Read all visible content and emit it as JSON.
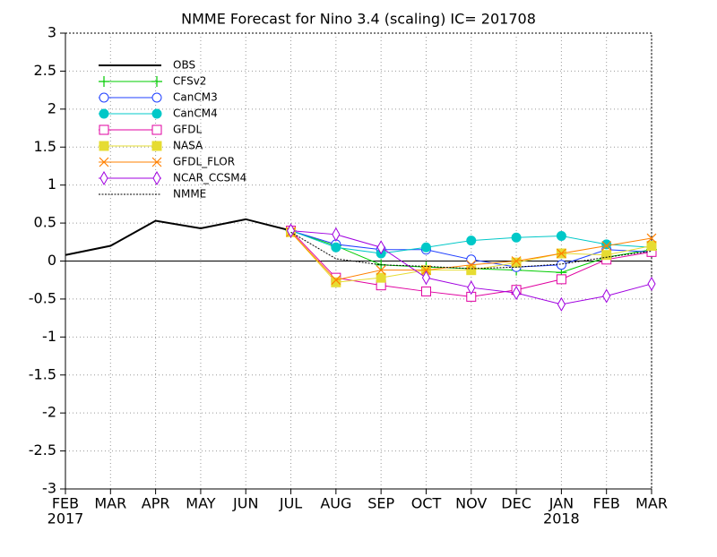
{
  "chart_data": {
    "type": "line",
    "title": "NMME Forecast for Nino 3.4 (scaling) IC= 201708",
    "categories": [
      "FEB",
      "MAR",
      "APR",
      "MAY",
      "JUN",
      "JUL",
      "AUG",
      "SEP",
      "OCT",
      "NOV",
      "DEC",
      "JAN",
      "FEB",
      "MAR"
    ],
    "category_years": [
      "2017",
      null,
      null,
      null,
      null,
      null,
      null,
      null,
      null,
      null,
      null,
      "2018",
      null,
      null
    ],
    "ylim": [
      -3,
      3
    ],
    "yticks": [
      -3,
      -2.5,
      -2,
      -1.5,
      -1,
      -0.5,
      0,
      0.5,
      1,
      1.5,
      2,
      2.5,
      3
    ],
    "grid": true,
    "legend": "upper-left",
    "series": [
      {
        "name": "OBS",
        "color": "#000000",
        "marker": "none",
        "values": [
          0.08,
          0.2,
          0.53,
          0.43,
          0.55,
          0.4,
          null,
          null,
          null,
          null,
          null,
          null,
          null,
          null
        ]
      },
      {
        "name": "CFSv2",
        "color": "#00cc00",
        "marker": "plus",
        "values": [
          null,
          null,
          null,
          null,
          null,
          0.4,
          0.2,
          -0.05,
          -0.08,
          -0.1,
          -0.12,
          -0.15,
          0.05,
          0.15
        ]
      },
      {
        "name": "CanCM3",
        "color": "#2040ff",
        "marker": "open-circle",
        "values": [
          null,
          null,
          null,
          null,
          null,
          0.4,
          0.22,
          0.15,
          0.15,
          0.02,
          -0.08,
          -0.05,
          0.15,
          0.12
        ]
      },
      {
        "name": "CanCM4",
        "color": "#00c8c8",
        "marker": "filled-circle",
        "values": [
          null,
          null,
          null,
          null,
          null,
          0.4,
          0.18,
          0.1,
          0.18,
          0.27,
          0.31,
          0.33,
          0.22,
          0.18
        ]
      },
      {
        "name": "GFDL",
        "color": "#e000a0",
        "marker": "open-square",
        "values": [
          null,
          null,
          null,
          null,
          null,
          0.4,
          -0.22,
          -0.32,
          -0.4,
          -0.47,
          -0.38,
          -0.24,
          0.02,
          0.12
        ]
      },
      {
        "name": "NASA",
        "color": "#e6dc32",
        "marker": "filled-square",
        "values": [
          null,
          null,
          null,
          null,
          null,
          0.38,
          -0.28,
          -0.22,
          -0.12,
          -0.12,
          -0.02,
          0.1,
          0.08,
          0.2
        ]
      },
      {
        "name": "GFDL_FLOR",
        "color": "#ff8000",
        "marker": "x",
        "values": [
          null,
          null,
          null,
          null,
          null,
          0.38,
          -0.25,
          -0.12,
          -0.12,
          -0.05,
          0.0,
          0.1,
          0.2,
          0.3
        ]
      },
      {
        "name": "NCAR_CCSM4",
        "color": "#a000e0",
        "marker": "diamond",
        "values": [
          null,
          null,
          null,
          null,
          null,
          0.4,
          0.35,
          0.18,
          -0.22,
          -0.35,
          -0.42,
          -0.57,
          -0.46,
          -0.3
        ]
      },
      {
        "name": "NMME",
        "color": "#000000",
        "marker": "none",
        "dash": true,
        "values": [
          null,
          null,
          null,
          null,
          null,
          0.38,
          0.03,
          -0.05,
          -0.07,
          -0.1,
          -0.08,
          -0.04,
          0.05,
          0.13
        ]
      }
    ]
  }
}
